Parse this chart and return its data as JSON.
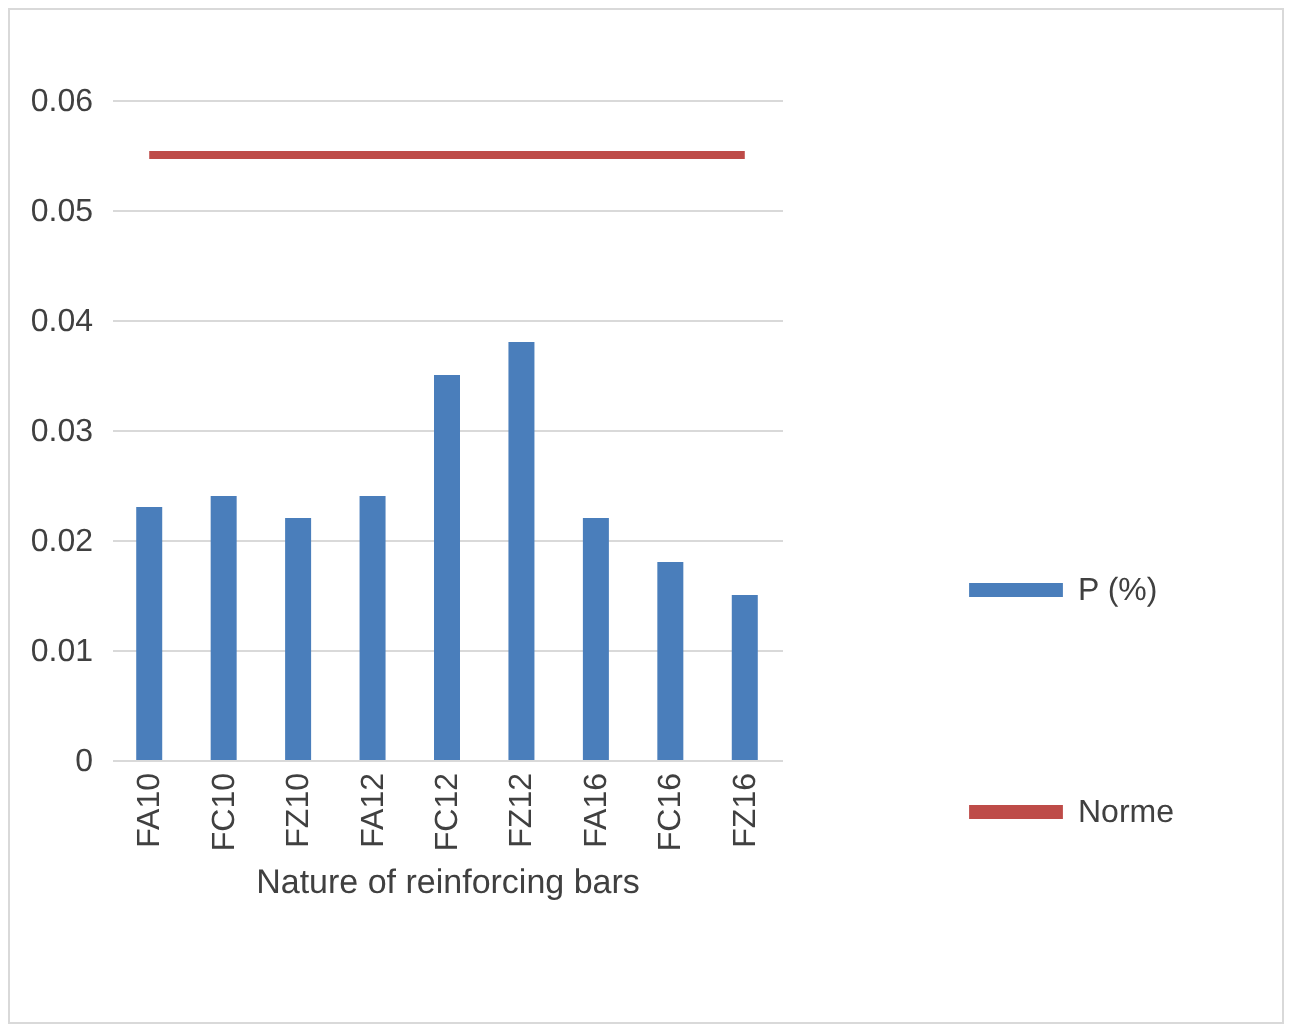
{
  "chart_data": {
    "type": "bar",
    "xlabel": "Nature of reinforcing bars",
    "categories": [
      "FA10",
      "FC10",
      "FZ10",
      "FA12",
      "FC12",
      "FZ12",
      "FA16",
      "FC16",
      "FZ16"
    ],
    "series": [
      {
        "name": "P (%)",
        "color": "#4a7ebb",
        "values": [
          0.023,
          0.024,
          0.022,
          0.024,
          0.035,
          0.038,
          0.022,
          0.018,
          0.015
        ]
      },
      {
        "name": "Norme",
        "type": "line",
        "color": "#be4b48",
        "values": [
          0.055,
          0.055,
          0.055,
          0.055,
          0.055,
          0.055,
          0.055,
          0.055,
          0.055
        ]
      }
    ],
    "ylim": [
      0,
      0.06
    ],
    "yticks": [
      0,
      0.01,
      0.02,
      0.03,
      0.04,
      0.05,
      0.06
    ],
    "grid": "y",
    "legend": "right"
  }
}
